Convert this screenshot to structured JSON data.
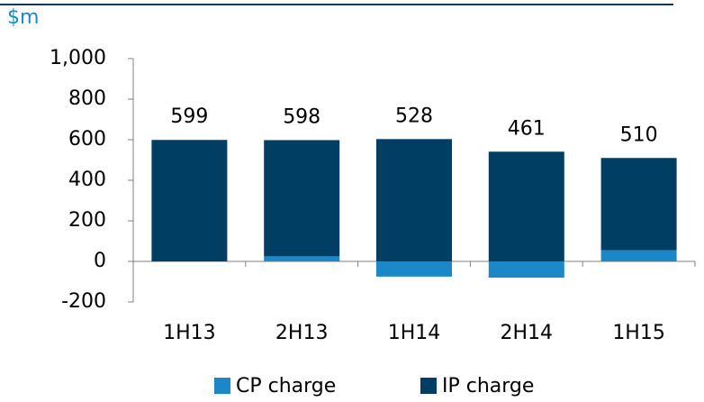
{
  "chart_data": {
    "type": "stacked_bar",
    "title": "$m",
    "categories": [
      "1H13",
      "2H13",
      "1H14",
      "2H14",
      "1H15"
    ],
    "series": [
      {
        "name": "CP charge",
        "color": "#1b87c9",
        "values": [
          0,
          25,
          -75,
          -80,
          55
        ]
      },
      {
        "name": "IP charge",
        "color": "#003f63",
        "values": [
          599,
          573,
          603,
          541,
          455
        ]
      }
    ],
    "totals": [
      599,
      598,
      528,
      461,
      510
    ],
    "ylim": [
      -200,
      1000
    ],
    "yticks": [
      {
        "value": -200,
        "label": "-200"
      },
      0,
      200,
      400,
      600,
      800,
      {
        "value": 1000,
        "label": "1,000"
      }
    ],
    "legend": "bottom"
  }
}
